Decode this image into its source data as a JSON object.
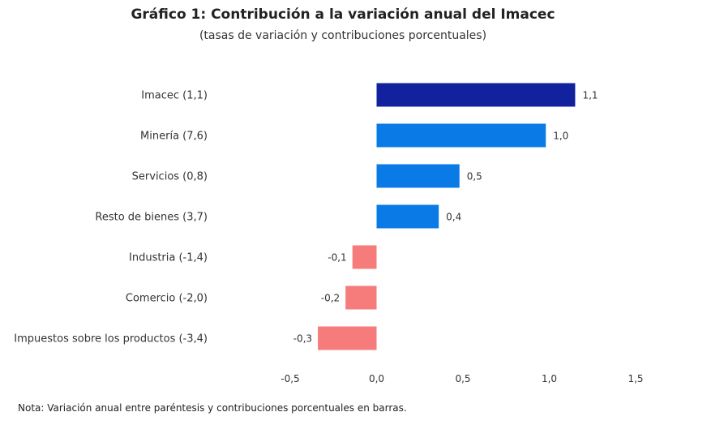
{
  "chart_data": {
    "type": "bar",
    "orientation": "horizontal",
    "title": "Gráfico 1: Contribución a la variación anual del Imacec",
    "subtitle": "(tasas de variación y contribuciones porcentuales)",
    "categories": [
      "Imacec (1,1)",
      "Minería (7,6)",
      "Servicios (0,8)",
      "Resto de bienes (3,7)",
      "Industria (-1,4)",
      "Comercio (-2,0)",
      "Impuestos sobre los productos (-3,4)"
    ],
    "values": [
      1.15,
      0.98,
      0.48,
      0.36,
      -0.14,
      -0.18,
      -0.34
    ],
    "data_labels": [
      "1,1",
      "1,0",
      "0,5",
      "0,4",
      "-0,1",
      "-0,2",
      "-0,3"
    ],
    "bar_colors": [
      "#12229e",
      "#0a7be6",
      "#0a7be6",
      "#0a7be6",
      "#f67b7b",
      "#f67b7b",
      "#f67b7b"
    ],
    "xlim": [
      -0.5,
      1.5
    ],
    "xticks": [
      -0.5,
      0.0,
      0.5,
      1.0,
      1.5
    ],
    "xtick_labels": [
      "-0,5",
      "0,0",
      "0,5",
      "1,0",
      "1,5"
    ],
    "xlabel": "",
    "ylabel": "",
    "grid": false,
    "legend": "none",
    "note": "Nota: Variación anual entre paréntesis y contribuciones porcentuales en barras."
  }
}
